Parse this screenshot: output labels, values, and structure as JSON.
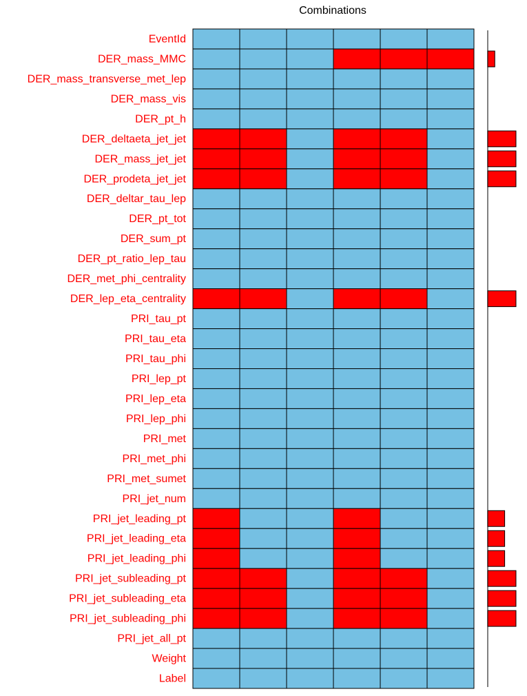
{
  "chart_data": {
    "type": "heatmap",
    "title": "Combinations",
    "variables": [
      "EventId",
      "DER_mass_MMC",
      "DER_mass_transverse_met_lep",
      "DER_mass_vis",
      "DER_pt_h",
      "DER_deltaeta_jet_jet",
      "DER_mass_jet_jet",
      "DER_prodeta_jet_jet",
      "DER_deltar_tau_lep",
      "DER_pt_tot",
      "DER_sum_pt",
      "DER_pt_ratio_lep_tau",
      "DER_met_phi_centrality",
      "DER_lep_eta_centrality",
      "PRI_tau_pt",
      "PRI_tau_eta",
      "PRI_tau_phi",
      "PRI_lep_pt",
      "PRI_lep_eta",
      "PRI_lep_phi",
      "PRI_met",
      "PRI_met_phi",
      "PRI_met_sumet",
      "PRI_jet_num",
      "PRI_jet_leading_pt",
      "PRI_jet_leading_eta",
      "PRI_jet_leading_phi",
      "PRI_jet_subleading_pt",
      "PRI_jet_subleading_eta",
      "PRI_jet_subleading_phi",
      "PRI_jet_all_pt",
      "Weight",
      "Label"
    ],
    "combinations": 6,
    "missing_matrix": [
      [
        0,
        0,
        0,
        0,
        0,
        0
      ],
      [
        0,
        0,
        0,
        1,
        1,
        1
      ],
      [
        0,
        0,
        0,
        0,
        0,
        0
      ],
      [
        0,
        0,
        0,
        0,
        0,
        0
      ],
      [
        0,
        0,
        0,
        0,
        0,
        0
      ],
      [
        1,
        1,
        0,
        1,
        1,
        0
      ],
      [
        1,
        1,
        0,
        1,
        1,
        0
      ],
      [
        1,
        1,
        0,
        1,
        1,
        0
      ],
      [
        0,
        0,
        0,
        0,
        0,
        0
      ],
      [
        0,
        0,
        0,
        0,
        0,
        0
      ],
      [
        0,
        0,
        0,
        0,
        0,
        0
      ],
      [
        0,
        0,
        0,
        0,
        0,
        0
      ],
      [
        0,
        0,
        0,
        0,
        0,
        0
      ],
      [
        1,
        1,
        0,
        1,
        1,
        0
      ],
      [
        0,
        0,
        0,
        0,
        0,
        0
      ],
      [
        0,
        0,
        0,
        0,
        0,
        0
      ],
      [
        0,
        0,
        0,
        0,
        0,
        0
      ],
      [
        0,
        0,
        0,
        0,
        0,
        0
      ],
      [
        0,
        0,
        0,
        0,
        0,
        0
      ],
      [
        0,
        0,
        0,
        0,
        0,
        0
      ],
      [
        0,
        0,
        0,
        0,
        0,
        0
      ],
      [
        0,
        0,
        0,
        0,
        0,
        0
      ],
      [
        0,
        0,
        0,
        0,
        0,
        0
      ],
      [
        0,
        0,
        0,
        0,
        0,
        0
      ],
      [
        1,
        0,
        0,
        1,
        0,
        0
      ],
      [
        1,
        0,
        0,
        1,
        0,
        0
      ],
      [
        1,
        0,
        0,
        1,
        0,
        0
      ],
      [
        1,
        1,
        0,
        1,
        1,
        0
      ],
      [
        1,
        1,
        0,
        1,
        1,
        0
      ],
      [
        1,
        1,
        0,
        1,
        1,
        0
      ],
      [
        0,
        0,
        0,
        0,
        0,
        0
      ],
      [
        0,
        0,
        0,
        0,
        0,
        0
      ],
      [
        0,
        0,
        0,
        0,
        0,
        0
      ]
    ],
    "missing_proportion": [
      0,
      0.25,
      0,
      0,
      0,
      1,
      1,
      1,
      0,
      0,
      0,
      0,
      0,
      1,
      0,
      0,
      0,
      0,
      0,
      0,
      0,
      0,
      0,
      0,
      0.6,
      0.6,
      0.6,
      1,
      1,
      1,
      0,
      0,
      0
    ],
    "colors": {
      "observed": "#75c0e3",
      "missing": "#ff0000",
      "grid_line": "#000000",
      "label": "#ff0000",
      "axis": "#555555"
    }
  }
}
